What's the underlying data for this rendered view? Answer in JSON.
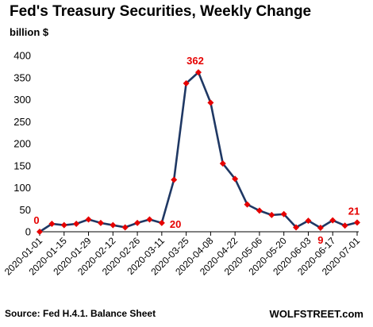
{
  "chart_data": {
    "type": "line",
    "title": "Fed's Treasury Securities, Weekly Change",
    "ylabel": "billion $",
    "ylim": [
      0,
      400
    ],
    "yticks": [
      0,
      50,
      100,
      150,
      200,
      250,
      300,
      350,
      400
    ],
    "x": [
      "2020-01-01",
      "2020-01-08",
      "2020-01-15",
      "2020-01-22",
      "2020-01-29",
      "2020-02-05",
      "2020-02-12",
      "2020-02-19",
      "2020-02-26",
      "2020-03-04",
      "2020-03-11",
      "2020-03-18",
      "2020-03-25",
      "2020-04-01",
      "2020-04-08",
      "2020-04-15",
      "2020-04-22",
      "2020-04-29",
      "2020-05-06",
      "2020-05-13",
      "2020-05-20",
      "2020-05-27",
      "2020-06-03",
      "2020-06-10",
      "2020-06-17",
      "2020-06-24",
      "2020-07-01"
    ],
    "xticks": [
      "2020-01-01",
      "2020-01-15",
      "2020-01-29",
      "2020-02-12",
      "2020-02-26",
      "2020-03-11",
      "2020-03-25",
      "2020-04-08",
      "2020-04-22",
      "2020-05-06",
      "2020-05-20",
      "2020-06-03",
      "2020-06-17",
      "2020-07-01"
    ],
    "series": [
      {
        "values": [
          0,
          18,
          15,
          18,
          28,
          20,
          15,
          10,
          20,
          28,
          20,
          118,
          337,
          362,
          293,
          155,
          120,
          62,
          48,
          38,
          40,
          10,
          25,
          9,
          26,
          14,
          21
        ]
      }
    ],
    "annotations": [
      {
        "index": 0,
        "text": "0"
      },
      {
        "index": 10,
        "text": "20"
      },
      {
        "index": 13,
        "text": "362"
      },
      {
        "index": 23,
        "text": "9"
      },
      {
        "index": 26,
        "text": "21"
      }
    ],
    "line_color": "#1f3864",
    "marker_color": "#e60000",
    "grid": false,
    "source": "Source: Fed H.4.1. Balance Sheet",
    "brand": "WOLFSTREET.com"
  }
}
